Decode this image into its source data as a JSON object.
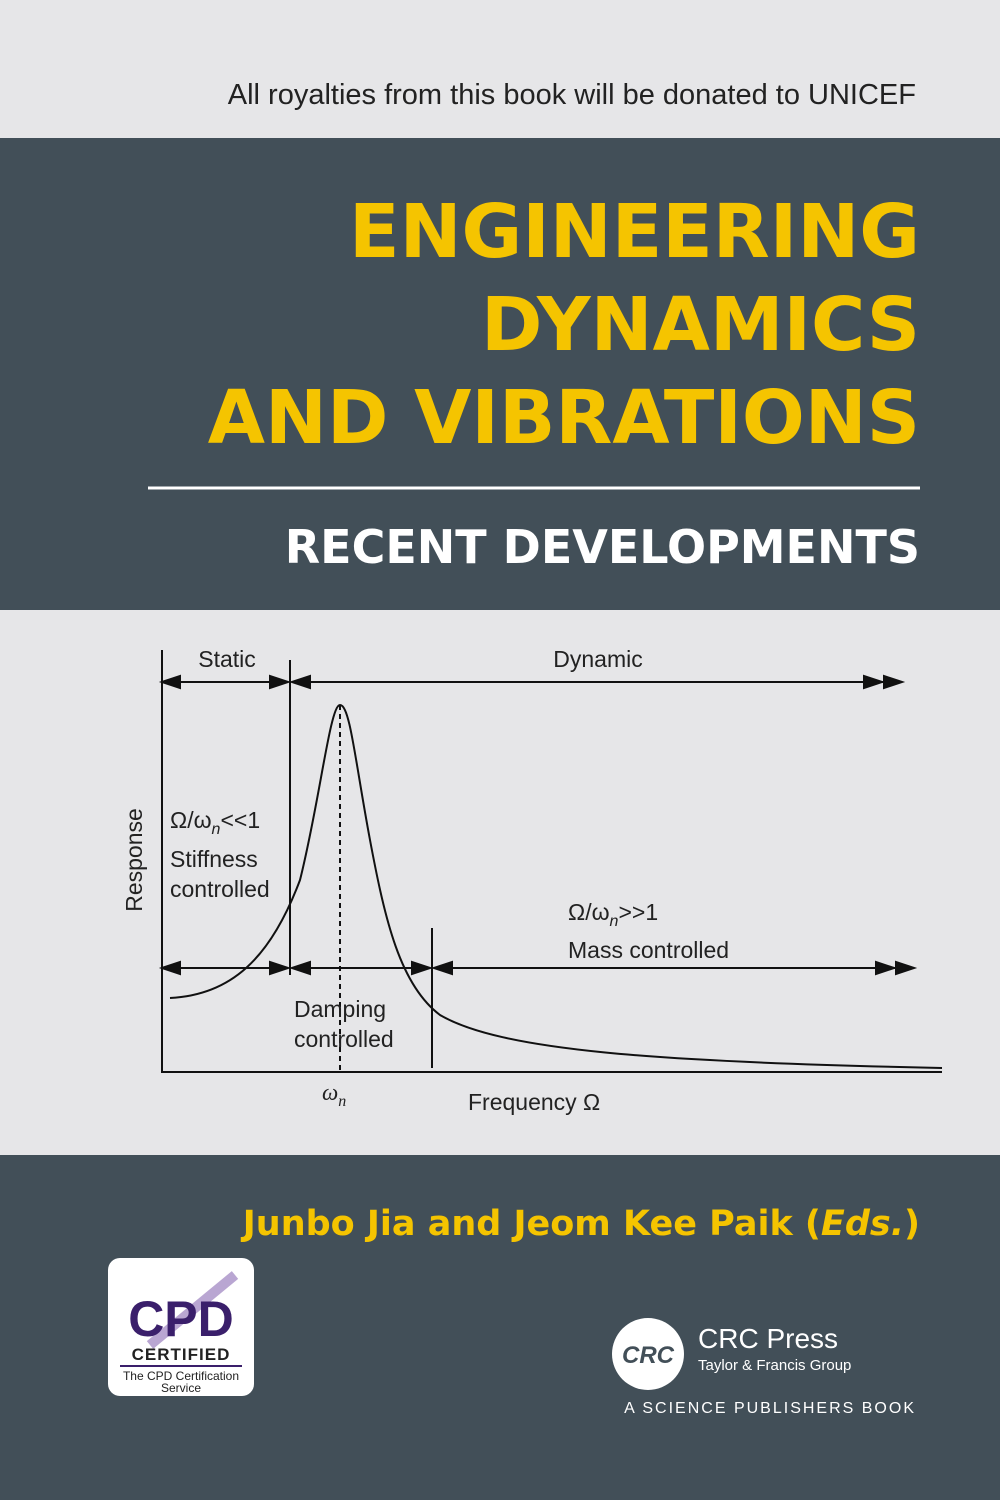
{
  "banner": "All royalties from this book will be donated to UNICEF",
  "title": {
    "lines": [
      "ENGINEERING",
      "DYNAMICS",
      "AND VIBRATIONS"
    ]
  },
  "subtitle": "RECENT DEVELOPMENTS",
  "diagram": {
    "static": "Static",
    "dynamic": "Dynamic",
    "y_axis": "Response",
    "x_axis": "Frequency Ω",
    "low_ratio": {
      "base": "Ω/ω",
      "sub": "n",
      "rest": "<<1"
    },
    "stiffness": [
      "Stiffness",
      "controlled"
    ],
    "high_ratio": {
      "base": "Ω/ω",
      "sub": "n",
      "rest": ">>1"
    },
    "mass": "Mass controlled",
    "damping": [
      "Damping",
      "controlled"
    ],
    "omega_n": {
      "base": "ω",
      "sub": "n"
    }
  },
  "authors": {
    "names": "Junbo Jia and Jeom Kee Paik (",
    "eds": "Eds.",
    "close": ")"
  },
  "cpd": {
    "logo": "CPD",
    "certified": "CERTIFIED",
    "service": [
      "The CPD Certification",
      "Service"
    ]
  },
  "publisher": {
    "logo": "CRC",
    "name": "CRC Press",
    "group": "Taylor & Francis Group",
    "imprint": "A SCIENCE PUBLISHERS BOOK"
  }
}
